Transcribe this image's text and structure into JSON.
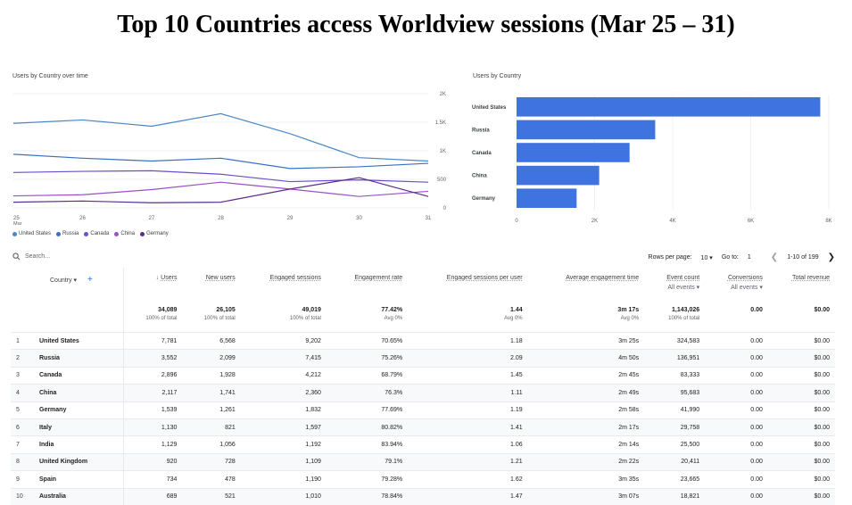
{
  "slide": {
    "title": "Top 10 Countries access Worldview sessions (Mar 25 – 31)"
  },
  "line_panel": {
    "label": "Users by Country over time"
  },
  "bar_panel": {
    "label": "Users by Country"
  },
  "chart_data": [
    {
      "type": "line",
      "title": "Users by Country over time",
      "x": [
        "25",
        "26",
        "27",
        "28",
        "29",
        "30",
        "31"
      ],
      "x_sublabel": "Mar",
      "ylim": [
        0,
        2000
      ],
      "yticks": [
        "0",
        "500",
        "1K",
        "1.5K",
        "2K"
      ],
      "grid": true,
      "legend": "bottom",
      "series": [
        {
          "name": "United States",
          "color": "#4a86c5",
          "values": [
            1480,
            1540,
            1430,
            1650,
            1300,
            880,
            820
          ]
        },
        {
          "name": "Russia",
          "color": "#3b6fc4",
          "values": [
            940,
            870,
            820,
            870,
            690,
            720,
            780
          ]
        },
        {
          "name": "Canada",
          "color": "#6a4fc9",
          "values": [
            620,
            640,
            650,
            590,
            460,
            490,
            450
          ]
        },
        {
          "name": "China",
          "color": "#9b4fc9",
          "values": [
            210,
            230,
            320,
            450,
            330,
            200,
            290
          ]
        },
        {
          "name": "Germany",
          "color": "#5b2b8c",
          "values": [
            100,
            120,
            90,
            100,
            330,
            530,
            200
          ]
        }
      ]
    },
    {
      "type": "bar",
      "orientation": "horizontal",
      "title": "Users by Country",
      "categories": [
        "United States",
        "Russia",
        "Canada",
        "China",
        "Germany"
      ],
      "values": [
        7781,
        3552,
        2896,
        2117,
        1539
      ],
      "xlim": [
        0,
        8000
      ],
      "xticks": [
        "0",
        "2K",
        "4K",
        "6K",
        "8K"
      ],
      "color": "#3f73e0",
      "grid": true
    }
  ],
  "toolbar": {
    "search_placeholder": "Search...",
    "rows_per_page_label": "Rows per page:",
    "rows_per_page": "10",
    "goto_label": "Go to:",
    "goto_value": "1",
    "range": "1-10 of 199"
  },
  "table": {
    "headers": {
      "country": "Country",
      "users": "Users",
      "new_users": "New users",
      "engaged_sessions": "Engaged sessions",
      "engagement_rate": "Engagement rate",
      "engaged_per_user": "Engaged sessions per user",
      "avg_engagement": "Average engagement time",
      "event_count": "Event count",
      "event_sub": "All events",
      "conversions": "Conversions",
      "conv_sub": "All events",
      "revenue": "Total revenue"
    },
    "totals": {
      "users": "34,089",
      "users_sub": "100% of total",
      "new_users": "26,105",
      "new_users_sub": "100% of total",
      "engaged_sessions": "49,019",
      "engaged_sessions_sub": "100% of total",
      "engagement_rate": "77.42%",
      "engagement_rate_sub": "Avg 0%",
      "engaged_per_user": "1.44",
      "engaged_per_user_sub": "Avg 0%",
      "avg_engagement": "3m 17s",
      "avg_engagement_sub": "Avg 0%",
      "event_count": "1,143,026",
      "event_count_sub": "100% of total",
      "conversions": "0.00",
      "revenue": "$0.00"
    },
    "rows": [
      [
        "1",
        "United States",
        "7,781",
        "6,568",
        "9,202",
        "70.65%",
        "1.18",
        "3m 25s",
        "324,583",
        "0.00",
        "$0.00"
      ],
      [
        "2",
        "Russia",
        "3,552",
        "2,099",
        "7,415",
        "75.26%",
        "2.09",
        "4m 50s",
        "136,951",
        "0.00",
        "$0.00"
      ],
      [
        "3",
        "Canada",
        "2,896",
        "1,928",
        "4,212",
        "68.79%",
        "1.45",
        "2m 45s",
        "83,333",
        "0.00",
        "$0.00"
      ],
      [
        "4",
        "China",
        "2,117",
        "1,741",
        "2,360",
        "76.3%",
        "1.11",
        "2m 49s",
        "95,683",
        "0.00",
        "$0.00"
      ],
      [
        "5",
        "Germany",
        "1,539",
        "1,261",
        "1,832",
        "77.69%",
        "1.19",
        "2m 58s",
        "41,990",
        "0.00",
        "$0.00"
      ],
      [
        "6",
        "Italy",
        "1,130",
        "821",
        "1,597",
        "80.82%",
        "1.41",
        "2m 17s",
        "29,758",
        "0.00",
        "$0.00"
      ],
      [
        "7",
        "India",
        "1,129",
        "1,056",
        "1,192",
        "83.94%",
        "1.06",
        "2m 14s",
        "25,500",
        "0.00",
        "$0.00"
      ],
      [
        "8",
        "United Kingdom",
        "920",
        "728",
        "1,109",
        "79.1%",
        "1.21",
        "2m 22s",
        "20,411",
        "0.00",
        "$0.00"
      ],
      [
        "9",
        "Spain",
        "734",
        "478",
        "1,190",
        "79.28%",
        "1.62",
        "3m 35s",
        "23,665",
        "0.00",
        "$0.00"
      ],
      [
        "10",
        "Australia",
        "689",
        "521",
        "1,010",
        "78.84%",
        "1.47",
        "3m 07s",
        "18,821",
        "0.00",
        "$0.00"
      ]
    ]
  }
}
